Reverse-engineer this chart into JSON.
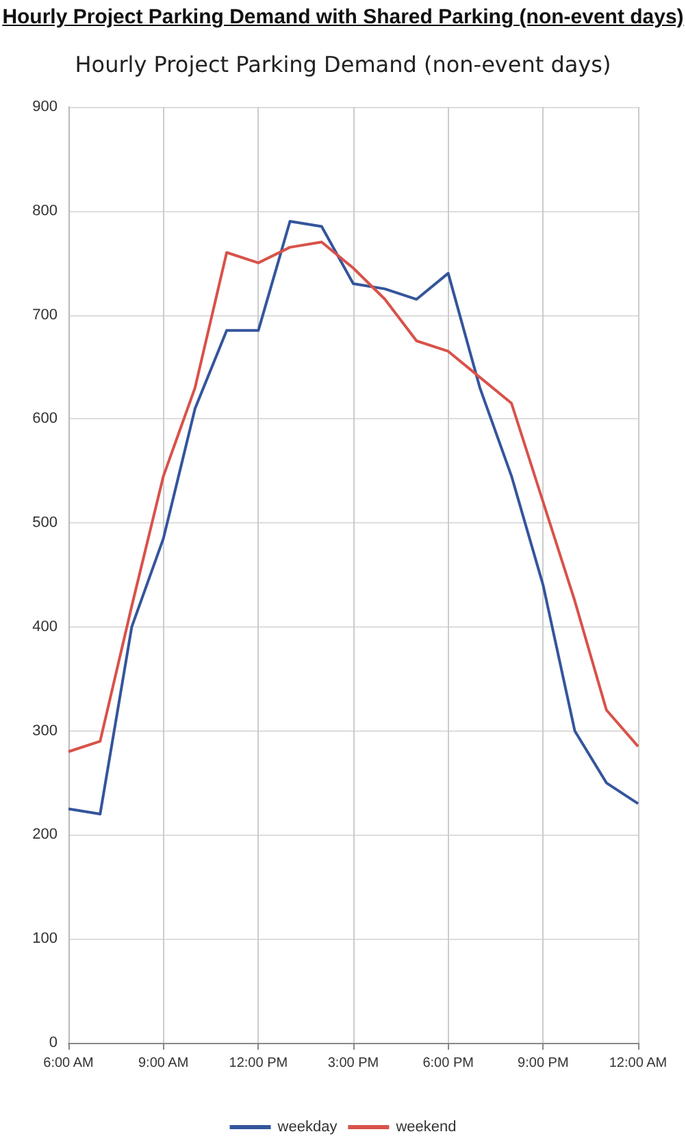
{
  "chart_data": {
    "type": "line",
    "title": "Hourly Project Parking Demand (non-event days)",
    "annotations": [
      "Hourly Project Parking Demand with Shared Parking (non-event days)"
    ],
    "x": [
      6,
      7,
      8,
      9,
      10,
      11,
      12,
      13,
      14,
      15,
      16,
      17,
      18,
      19,
      20,
      21,
      22,
      23,
      24
    ],
    "series": [
      {
        "name": "weekday",
        "color": "#34559c",
        "values": [
          225,
          220,
          400,
          485,
          610,
          685,
          685,
          790,
          785,
          730,
          725,
          715,
          740,
          630,
          545,
          440,
          300,
          250,
          230
        ]
      },
      {
        "name": "weekend",
        "color": "#d8524a",
        "values": [
          280,
          290,
          420,
          545,
          630,
          760,
          750,
          765,
          770,
          745,
          715,
          675,
          665,
          640,
          615,
          520,
          425,
          320,
          285
        ]
      }
    ],
    "xlim": [
      6,
      24
    ],
    "xticks": [
      {
        "value": 6,
        "label": "6:00 AM"
      },
      {
        "value": 9,
        "label": "9:00 AM"
      },
      {
        "value": 12,
        "label": "12:00 PM"
      },
      {
        "value": 15,
        "label": "3:00 PM"
      },
      {
        "value": 18,
        "label": "6:00 PM"
      },
      {
        "value": 21,
        "label": "9:00 PM"
      },
      {
        "value": 24,
        "label": "12:00 AM"
      }
    ],
    "ylim": [
      0,
      900
    ],
    "yticks": [
      0,
      100,
      200,
      300,
      400,
      500,
      600,
      700,
      800,
      900
    ],
    "grid": true,
    "legend": "bottom",
    "marker": "none",
    "line_style": "solid"
  }
}
